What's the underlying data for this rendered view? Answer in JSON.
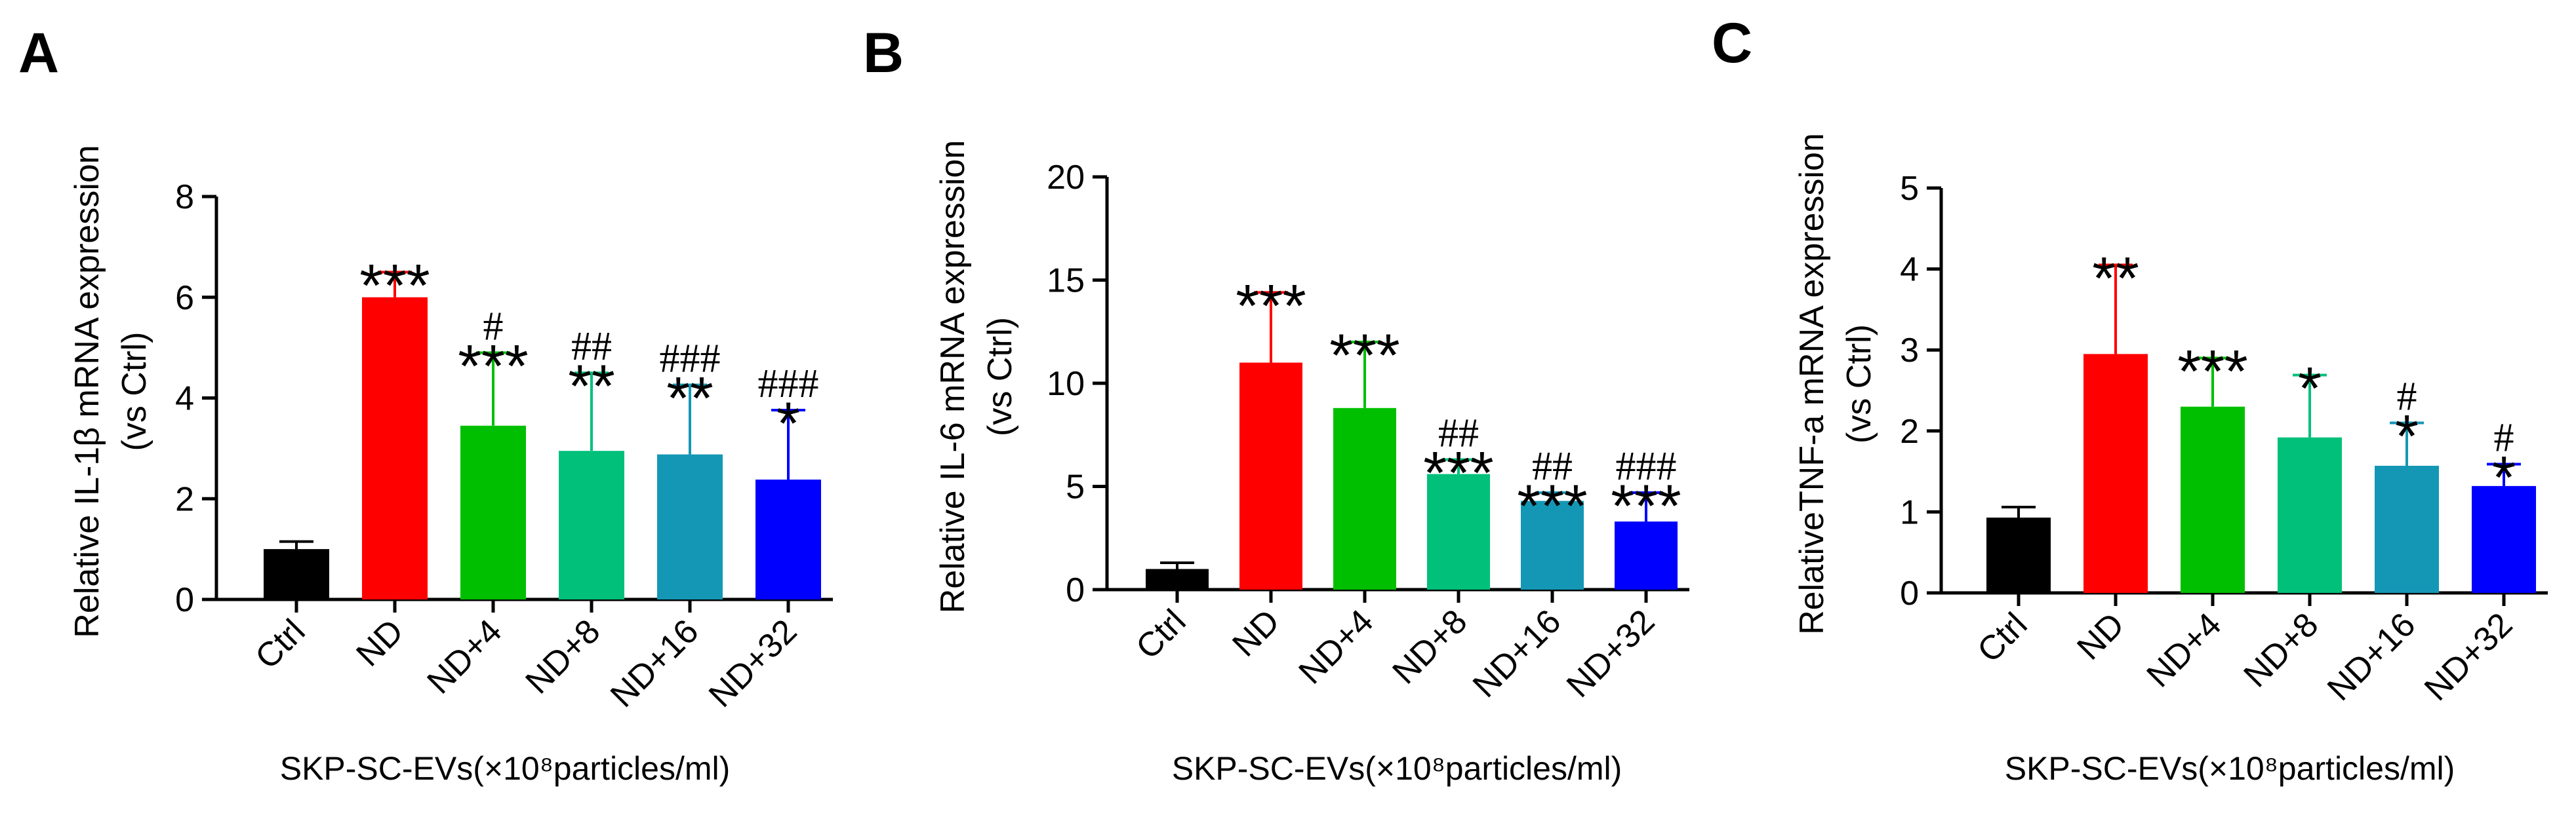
{
  "chart_data": [
    {
      "type": "bar",
      "panel": "A",
      "ylabel_lines": [
        "Relative IL-1β mRNA expression",
        "(vs Ctrl)"
      ],
      "xlabel": "SKP-SC-EVs(×10⁸particles/ml)",
      "categories": [
        "Ctrl",
        "ND",
        "ND+4",
        "ND+8",
        "ND+16",
        "ND+32"
      ],
      "values": [
        1.0,
        6.0,
        3.45,
        2.95,
        2.88,
        2.38
      ],
      "errors": [
        0.15,
        0.5,
        1.45,
        1.55,
        1.38,
        1.38
      ],
      "stars": [
        "",
        "***",
        "***",
        "**",
        "**",
        "*"
      ],
      "hashes": [
        "",
        "",
        "#",
        "##",
        "###",
        "###"
      ],
      "colors": [
        "#000000",
        "#ff0000",
        "#00bf00",
        "#00c07a",
        "#1497b5",
        "#0000ff"
      ],
      "ylim": [
        0,
        8
      ],
      "yticks": [
        0,
        2,
        4,
        6,
        8
      ],
      "ytick_labels": [
        "0",
        "2",
        "4",
        "6",
        "8"
      ]
    },
    {
      "type": "bar",
      "panel": "B",
      "ylabel_lines": [
        "Relative IL-6 mRNA expression",
        "(vs Ctrl)"
      ],
      "xlabel": "SKP-SC-EVs(×10⁸particles/ml)",
      "categories": [
        "Ctrl",
        "ND",
        "ND+4",
        "ND+8",
        "ND+16",
        "ND+32"
      ],
      "values": [
        1.0,
        11.0,
        8.8,
        5.6,
        4.3,
        3.3
      ],
      "errors": [
        0.3,
        3.4,
        3.2,
        0.7,
        0.4,
        1.4
      ],
      "stars": [
        "",
        "***",
        "***",
        "***",
        "***",
        "***"
      ],
      "hashes": [
        "",
        "",
        "",
        "##",
        "##",
        "###"
      ],
      "colors": [
        "#000000",
        "#ff0000",
        "#00bf00",
        "#00c07a",
        "#1497b5",
        "#0000ff"
      ],
      "ylim": [
        0,
        20
      ],
      "yticks": [
        0,
        5,
        10,
        15,
        20
      ],
      "ytick_labels": [
        "0",
        "5",
        "10",
        "15",
        "20"
      ]
    },
    {
      "type": "bar",
      "panel": "C",
      "ylabel_lines": [
        "RelativeTNF-a mRNA expression",
        "(vs Ctrl)"
      ],
      "xlabel": "SKP-SC-EVs(×10⁸particles/ml)",
      "categories": [
        "Ctrl",
        "ND",
        "ND+4",
        "ND+8",
        "ND+16",
        "ND+32"
      ],
      "values": [
        0.93,
        2.95,
        2.3,
        1.92,
        1.57,
        1.32
      ],
      "errors": [
        0.13,
        1.1,
        0.6,
        0.77,
        0.53,
        0.27
      ],
      "stars": [
        "",
        "**",
        "***",
        "*",
        "*",
        "*"
      ],
      "hashes": [
        "",
        "",
        "",
        "",
        "#",
        "#"
      ],
      "colors": [
        "#000000",
        "#ff0000",
        "#00bf00",
        "#00c07a",
        "#1497b5",
        "#0000ff"
      ],
      "ylim": [
        0,
        5
      ],
      "yticks": [
        0,
        1,
        2,
        3,
        4,
        5
      ],
      "ytick_labels": [
        "0",
        "1",
        "2",
        "3",
        "4",
        "5"
      ]
    }
  ]
}
